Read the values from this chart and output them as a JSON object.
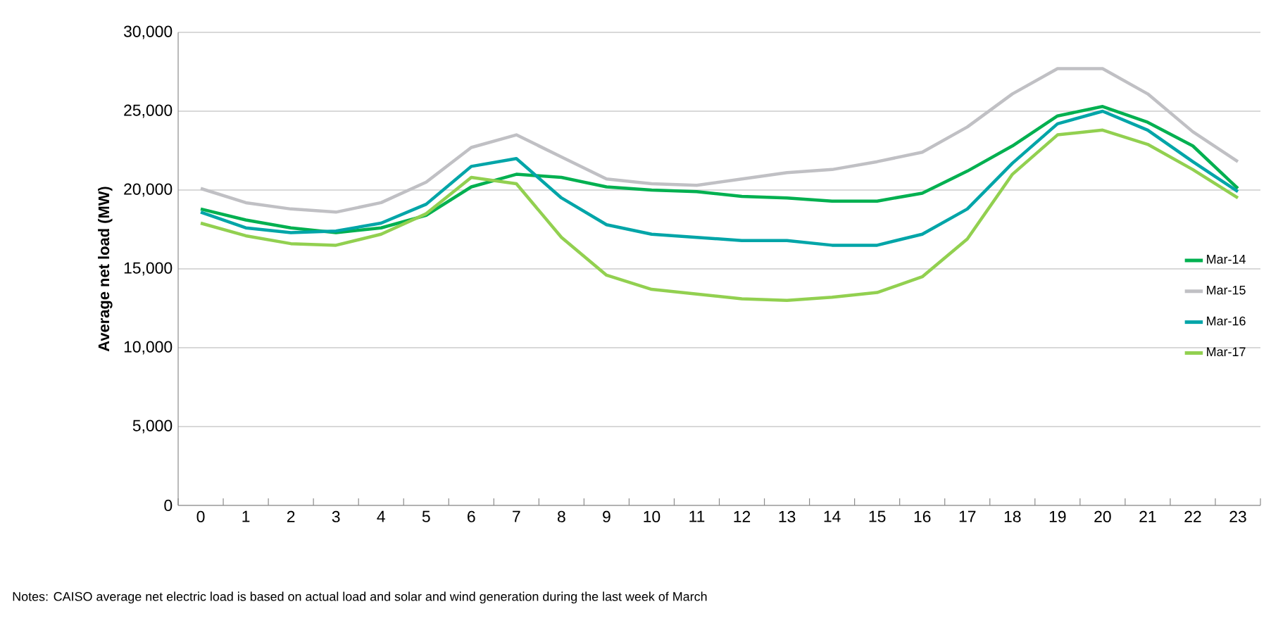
{
  "chart_data": {
    "type": "line",
    "ylabel": "Average net load (MW)",
    "categories": [
      "0",
      "1",
      "2",
      "3",
      "4",
      "5",
      "6",
      "7",
      "8",
      "9",
      "10",
      "11",
      "12",
      "13",
      "14",
      "15",
      "16",
      "17",
      "18",
      "19",
      "20",
      "21",
      "22",
      "23"
    ],
    "series": [
      {
        "name": "Mar-14",
        "color": "#00b050",
        "values": [
          18800,
          18100,
          17600,
          17300,
          17600,
          18400,
          20200,
          21000,
          20800,
          20200,
          20000,
          19900,
          19600,
          19500,
          19300,
          19300,
          19800,
          21200,
          22800,
          24700,
          25300,
          24300,
          22800,
          20100
        ]
      },
      {
        "name": "Mar-15",
        "color": "#c0c0c4",
        "values": [
          20100,
          19200,
          18800,
          18600,
          19200,
          20500,
          22700,
          23500,
          22100,
          20700,
          20400,
          20300,
          20700,
          21100,
          21300,
          21800,
          22400,
          24000,
          26100,
          27700,
          27700,
          26100,
          23700,
          21800
        ]
      },
      {
        "name": "Mar-16",
        "color": "#00a5a8",
        "values": [
          18600,
          17600,
          17300,
          17400,
          17900,
          19100,
          21500,
          22000,
          19500,
          17800,
          17200,
          17000,
          16800,
          16800,
          16500,
          16500,
          17200,
          18800,
          21700,
          24200,
          25000,
          23800,
          21800,
          19900
        ]
      },
      {
        "name": "Mar-17",
        "color": "#92d050",
        "values": [
          17900,
          17100,
          16600,
          16500,
          17200,
          18500,
          20800,
          20400,
          17000,
          14600,
          13700,
          13400,
          13100,
          13000,
          13200,
          13500,
          14500,
          16900,
          21000,
          23500,
          23800,
          22900,
          21300,
          19500
        ]
      }
    ],
    "ylim": [
      0,
      30000
    ],
    "yticks": [
      {
        "value": 0,
        "label": "0"
      },
      {
        "value": 5000,
        "label": "5,000"
      },
      {
        "value": 10000,
        "label": "10,000"
      },
      {
        "value": 15000,
        "label": "15,000"
      },
      {
        "value": 20000,
        "label": "20,000"
      },
      {
        "value": 25000,
        "label": "25,000"
      },
      {
        "value": 30000,
        "label": "30,000"
      }
    ],
    "grid": "y",
    "legend": "right",
    "annotations": [
      "Notes: CAISO average net electric load is based on actual load and solar and wind generation during the last week of March"
    ]
  }
}
